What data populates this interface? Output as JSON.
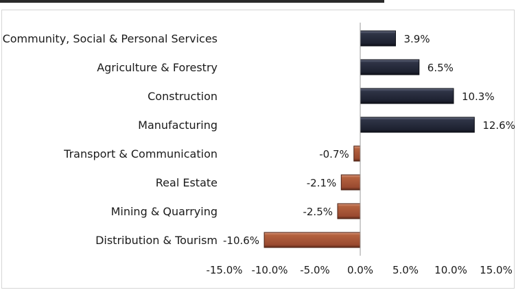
{
  "chart_data": {
    "type": "bar",
    "orientation": "horizontal",
    "title": "",
    "xlabel": "",
    "ylabel": "",
    "categories": [
      "Community, Social & Personal Services",
      "Agriculture & Forestry",
      "Construction",
      "Manufacturing",
      "Transport & Communication",
      "Real Estate",
      "Mining & Quarrying",
      "Distribution & Tourism"
    ],
    "values": [
      3.9,
      6.5,
      10.3,
      12.6,
      -0.7,
      -2.1,
      -2.5,
      -10.6
    ],
    "value_labels": [
      "3.9%",
      "6.5%",
      "10.3%",
      "12.6%",
      "-0.7%",
      "-2.1%",
      "-2.5%",
      "-10.6%"
    ],
    "xlim": [
      -15,
      15
    ],
    "x_ticks": [
      -15,
      -10,
      -5,
      0,
      5,
      10,
      15
    ],
    "x_tick_labels": [
      "-15.0%",
      "-10.0%",
      "-5.0%",
      "0.0%",
      "5.0%",
      "10.0%",
      "15.0%"
    ],
    "grid": false,
    "colors": {
      "positive": "#262b3a",
      "negative": "#a4533a"
    }
  }
}
